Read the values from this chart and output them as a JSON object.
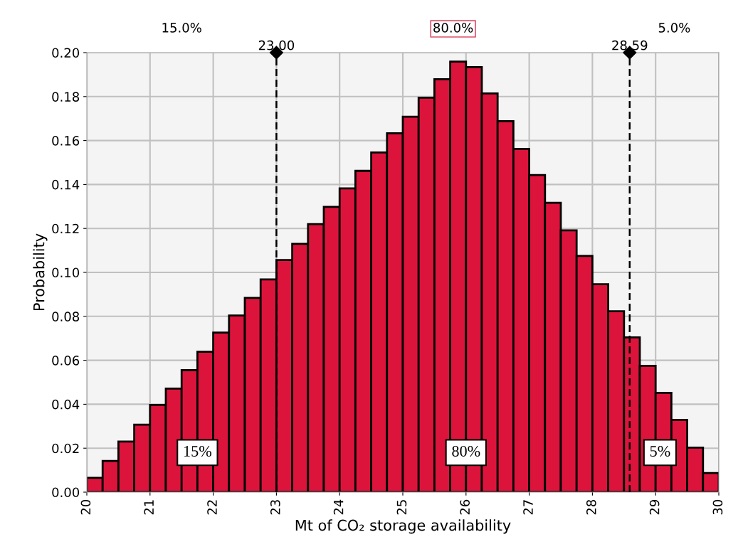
{
  "chart_data": {
    "type": "histogram",
    "xlabel": "Mt of CO₂ storage availability",
    "ylabel": "Probability",
    "bins": [
      20.0,
      20.25,
      20.5,
      20.75,
      21.0,
      21.25,
      21.5,
      21.75,
      22.0,
      22.25,
      22.5,
      22.75,
      23.0,
      23.25,
      23.5,
      23.75,
      24.0,
      24.25,
      24.5,
      24.75,
      25.0,
      25.25,
      25.5,
      25.75,
      26.0,
      26.25,
      26.5,
      26.75,
      27.0,
      27.25,
      27.5,
      27.75,
      28.0,
      28.25,
      28.5,
      28.75,
      29.0,
      29.25,
      29.5,
      29.75,
      30.0
    ],
    "values": [
      0.0065,
      0.0142,
      0.023,
      0.0307,
      0.0397,
      0.0471,
      0.0555,
      0.0639,
      0.0726,
      0.0804,
      0.0884,
      0.0968,
      0.1056,
      0.113,
      0.122,
      0.1298,
      0.1382,
      0.1462,
      0.1546,
      0.1633,
      0.1708,
      0.1795,
      0.1879,
      0.1959,
      0.1934,
      0.1814,
      0.1688,
      0.1562,
      0.1443,
      0.1317,
      0.1191,
      0.1075,
      0.0946,
      0.0823,
      0.0704,
      0.0575,
      0.0452,
      0.0329,
      0.0203,
      0.0087
    ],
    "color": "#dc143c",
    "xlim": [
      20,
      30
    ],
    "xticks": [
      20,
      21,
      22,
      23,
      24,
      25,
      26,
      27,
      28,
      29,
      30
    ],
    "ylim": [
      0,
      0.2
    ],
    "yticks": [
      {
        "value": 0,
        "label": "0.00"
      },
      {
        "value": 0.02,
        "label": "0.02"
      },
      {
        "value": 0.04,
        "label": "0.04"
      },
      {
        "value": 0.06,
        "label": "0.06"
      },
      {
        "value": 0.08,
        "label": "0.08"
      },
      {
        "value": 0.1,
        "label": "0.10"
      },
      {
        "value": 0.12,
        "label": "0.12"
      },
      {
        "value": 0.14,
        "label": "0.14"
      },
      {
        "value": 0.16,
        "label": "0.16"
      },
      {
        "value": 0.18,
        "label": "0.18"
      },
      {
        "value": 0.2,
        "label": "0.20"
      }
    ],
    "grid": true,
    "ref_lines": [
      {
        "axis": "x",
        "value": 23.0,
        "label": "23.00",
        "line_style": "dashed",
        "color": "#000000"
      },
      {
        "axis": "x",
        "value": 28.59,
        "label": "28.59",
        "line_style": "dashed",
        "color": "#000000"
      }
    ],
    "annotations": [
      "15.0%",
      "80.0%",
      "5.0%",
      {
        "text": "15%",
        "x": 21.75,
        "y": 0.018
      },
      {
        "text": "80%",
        "x": 26.0,
        "y": 0.018
      },
      {
        "text": "5%",
        "x": 29.07,
        "y": 0.018
      }
    ]
  }
}
